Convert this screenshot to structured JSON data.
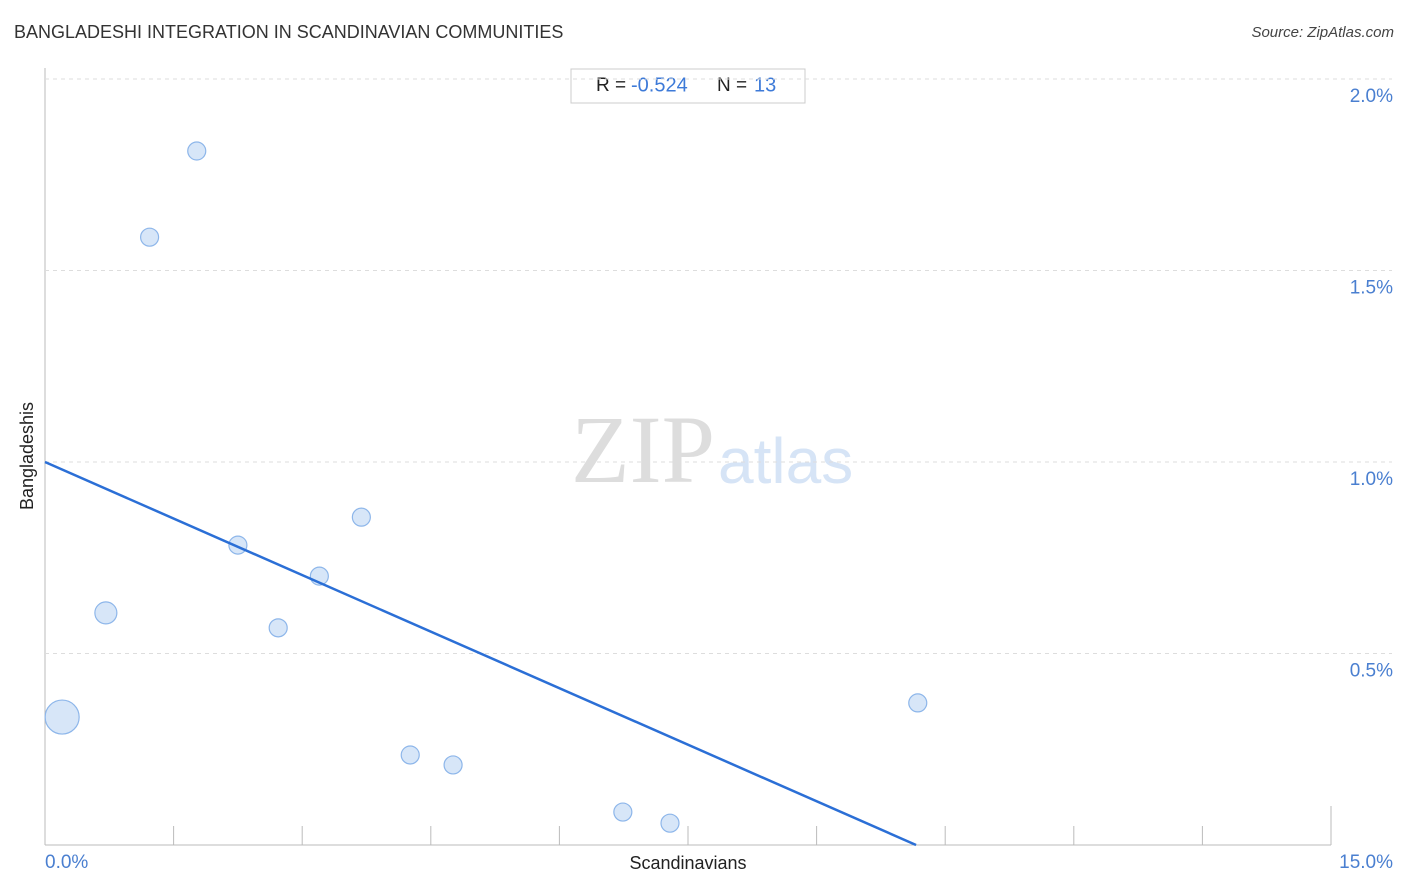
{
  "chart_data": {
    "type": "scatter",
    "title": "BANGLADESHI INTEGRATION IN SCANDINAVIAN COMMUNITIES",
    "source": "Source: ZipAtlas.com",
    "x_label": "Scandinavians",
    "y_label": "Bangladeshis",
    "watermark": [
      "ZIP",
      "atlas"
    ],
    "stats": {
      "r_label": "R =",
      "r": "-0.524",
      "n_label": "N =",
      "n": "13"
    },
    "color": "#c9ddf6",
    "edge_color": "#8db6ea",
    "line_color": "#2b6fd6",
    "x": [
      0.2,
      0.71,
      1.22,
      1.77,
      2.25,
      2.72,
      3.2,
      3.69,
      4.26,
      4.76,
      6.74,
      7.29,
      10.18
    ],
    "values": [
      0.334,
      0.606,
      1.587,
      1.812,
      0.783,
      0.567,
      0.702,
      0.856,
      0.235,
      0.209,
      0.086,
      0.057,
      0.371
    ],
    "sizes": [
      17,
      11,
      9,
      9,
      9,
      9,
      9,
      9,
      9,
      9,
      9,
      9,
      9
    ],
    "trendline": {
      "x": [
        0,
        10.16
      ],
      "y": [
        1.0,
        0
      ]
    },
    "xlim": [
      0,
      15
    ],
    "ylim": [
      0,
      2.0
    ],
    "xticks": [
      {
        "value": 0,
        "label": "0.0%"
      },
      {
        "value": 15,
        "label": "15.0%"
      }
    ],
    "xminorticks": [
      1.5,
      3,
      4.5,
      6,
      7.5,
      9,
      10.5,
      12,
      13.5
    ],
    "yticks": [
      {
        "value": 0.5,
        "label": "0.5%"
      },
      {
        "value": 1.0,
        "label": "1.0%"
      },
      {
        "value": 1.5,
        "label": "1.5%"
      },
      {
        "value": 2.0,
        "label": "2.0%"
      }
    ],
    "grid": true
  }
}
